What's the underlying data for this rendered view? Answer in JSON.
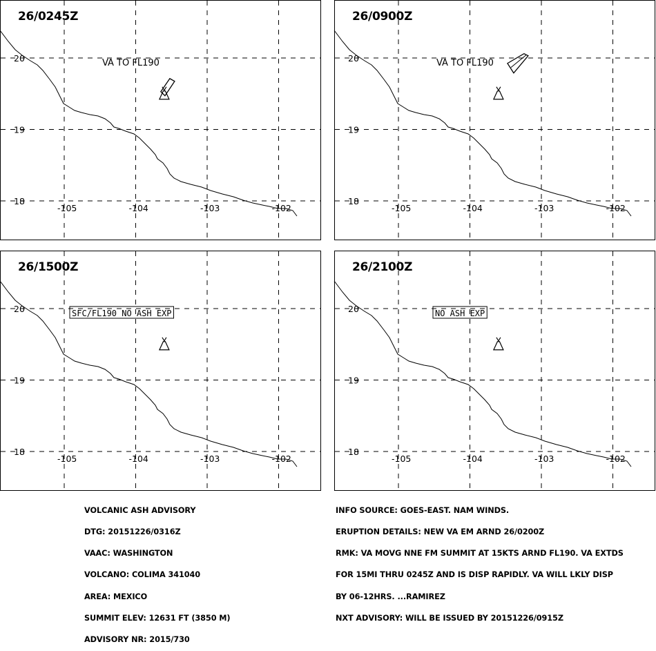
{
  "panels": [
    {
      "time": "26/0245Z",
      "label": "VA TO FL190",
      "label_type": "plain",
      "ash": "plume"
    },
    {
      "time": "26/0900Z",
      "label": "VA TO FL190",
      "label_type": "plain",
      "ash": "box"
    },
    {
      "time": "26/1500Z",
      "label": "SFC/FL190 NO ASH EXP",
      "label_type": "boxed",
      "ash": "none"
    },
    {
      "time": "26/2100Z",
      "label": "NO ASH EXP",
      "label_type": "boxed",
      "ash": "none"
    }
  ],
  "map": {
    "lon_labels": [
      "-105",
      "-104",
      "-103",
      "-102"
    ],
    "lat_labels": [
      "20",
      "19",
      "18"
    ],
    "lon_range": [
      -105.9,
      -101.5
    ],
    "lat_range": [
      17.4,
      20.8
    ],
    "volcano": {
      "lon": -103.6,
      "lat": 19.5,
      "symbol": "volcano-triangle"
    },
    "line_color": "#000000"
  },
  "advisory": {
    "left": [
      "VOLCANIC ASH ADVISORY",
      "DTG: 20151226/0316Z",
      "VAAC: WASHINGTON",
      "VOLCANO: COLIMA 341040",
      "AREA: MEXICO",
      "SUMMIT ELEV: 12631 FT (3850 M)",
      "ADVISORY NR: 2015/730"
    ],
    "right": [
      "INFO SOURCE: GOES-EAST. NAM WINDS.",
      "ERUPTION DETAILS: NEW VA EM ARND 26/0200Z",
      "RMK: VA MOVG NNE FM SUMMIT AT 15KTS ARND FL190. VA EXTDS",
      "FOR 15MI THRU 0245Z AND IS DISP RAPIDLY. VA WILL LKLY DISP",
      "BY 06-12HRS. ...RAMIREZ",
      "NXT ADVISORY: WILL BE ISSUED BY 20151226/0915Z"
    ]
  }
}
